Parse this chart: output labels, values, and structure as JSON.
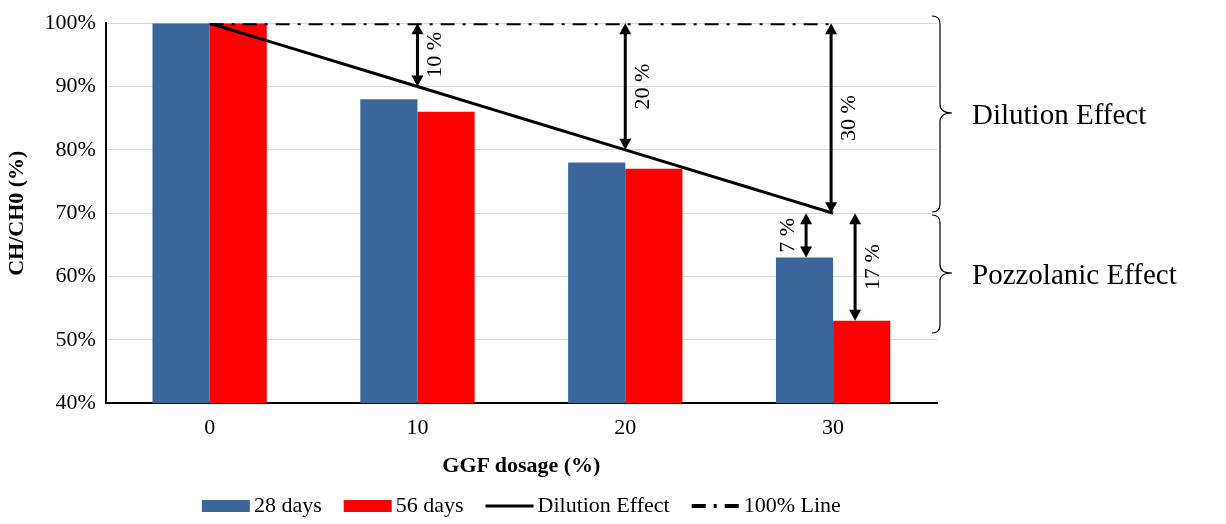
{
  "chart_data": {
    "type": "bar",
    "xlabel": "GGF dosage (%)",
    "ylabel": "CH/CH0 (%)",
    "categories": [
      "0",
      "10",
      "20",
      "30"
    ],
    "series": [
      {
        "name": "28 days",
        "color": "#3c6699",
        "values": [
          100,
          88,
          78,
          63
        ]
      },
      {
        "name": "56 days",
        "color": "#ff0000",
        "values": [
          100,
          86,
          77,
          53
        ]
      },
      {
        "name": "Dilution Effect",
        "type": "line",
        "color": "#000000",
        "line_style": "solid",
        "values": [
          100,
          90,
          80,
          70
        ]
      },
      {
        "name": "100% Line",
        "type": "line",
        "color": "#000000",
        "line_style": "dashed",
        "values": [
          100,
          100,
          100,
          100
        ]
      }
    ],
    "ylim": [
      40,
      100
    ],
    "yticks": [
      {
        "value": 40,
        "label": "40%"
      },
      {
        "value": 50,
        "label": "50%"
      },
      {
        "value": 60,
        "label": "60%"
      },
      {
        "value": 70,
        "label": "70%"
      },
      {
        "value": 80,
        "label": "80%"
      },
      {
        "value": 90,
        "label": "90%"
      },
      {
        "value": 100,
        "label": "100%"
      }
    ],
    "grid": "y",
    "legend": "bottom",
    "marker": "none",
    "annotations": [
      "10 %",
      "20 %",
      "30 %",
      "7 %",
      "17 %",
      "Dilution Effect",
      "Pozzolanic Effect"
    ]
  }
}
